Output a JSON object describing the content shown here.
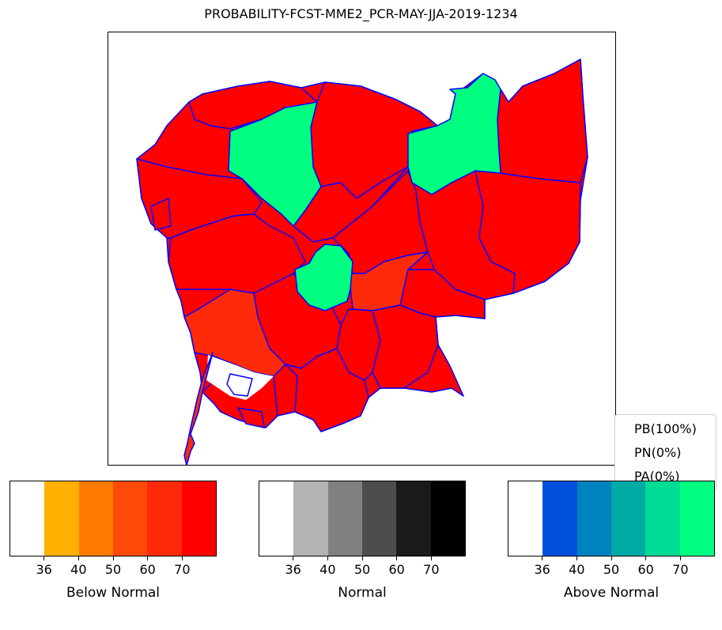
{
  "title": "PROBABILITY-FCST-MME2_PCR-MAY-JJA-2019-1234",
  "legend": {
    "items": [
      {
        "label": "PB(100%)"
      },
      {
        "label": "PN(0%)"
      },
      {
        "label": "PA(0%)"
      }
    ]
  },
  "colorbars": [
    {
      "title": "Below Normal",
      "ticks": [
        "36",
        "40",
        "50",
        "60",
        "70"
      ],
      "colors": [
        "#ffffff",
        "#ffb000",
        "#ff7a00",
        "#ff4a0a",
        "#ff2a0a",
        "#ff0000"
      ]
    },
    {
      "title": "Normal",
      "ticks": [
        "36",
        "40",
        "50",
        "60",
        "70"
      ],
      "colors": [
        "#ffffff",
        "#b3b3b3",
        "#808080",
        "#4d4d4d",
        "#1a1a1a",
        "#000000"
      ]
    },
    {
      "title": "Above Normal",
      "ticks": [
        "36",
        "40",
        "50",
        "60",
        "70"
      ],
      "colors": [
        "#ffffff",
        "#0050dc",
        "#0082be",
        "#00aaa5",
        "#00dc96",
        "#00ff80"
      ]
    }
  ],
  "map_colors": {
    "below": "#ff0000",
    "below_light": "#ff2a0a",
    "above": "#00ff80",
    "border": "#0000ff"
  }
}
